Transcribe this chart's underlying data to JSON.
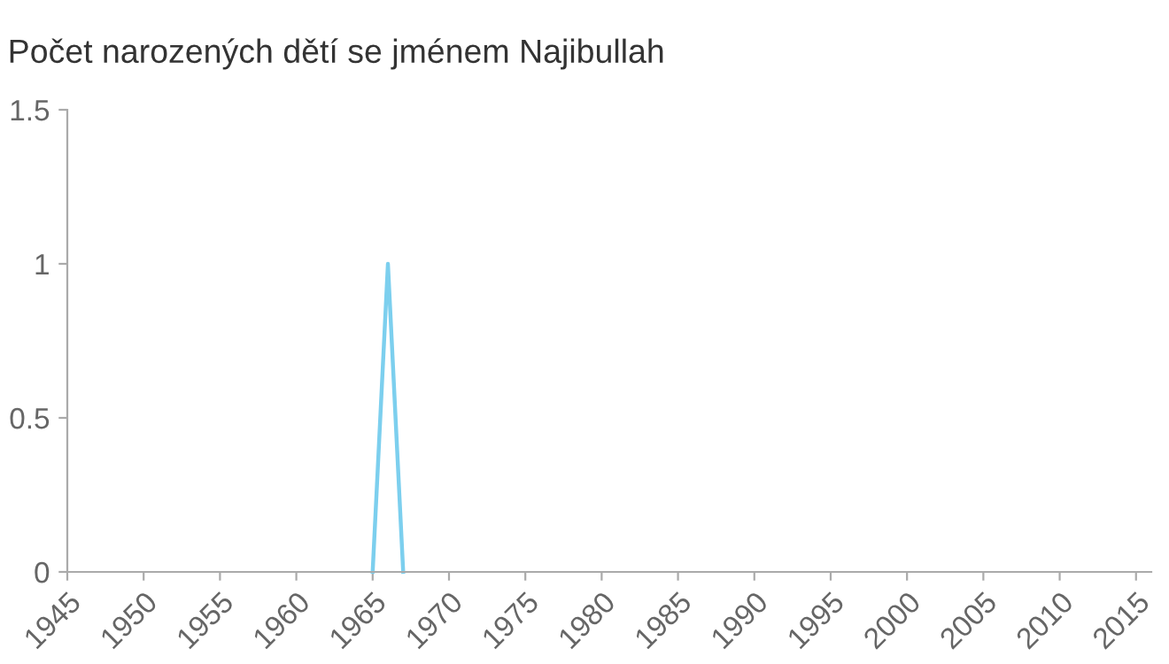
{
  "chart_data": {
    "type": "line",
    "title": "Počet narozených dětí se jménem Najibullah",
    "x": [
      1965,
      1966,
      1967
    ],
    "series": [
      {
        "color": "#7ccfee",
        "values": [
          0,
          1,
          0
        ]
      }
    ],
    "xlim": [
      1945,
      2016
    ],
    "xticks": [
      1945,
      1950,
      1955,
      1960,
      1965,
      1970,
      1975,
      1980,
      1985,
      1990,
      1995,
      2000,
      2005,
      2010,
      2015
    ],
    "ylim": [
      0,
      1.5
    ],
    "yticks": [
      0,
      {
        "value": 0.5,
        "label": "0.5"
      },
      1,
      {
        "value": 1.5,
        "label": "1.5"
      }
    ],
    "grid": false,
    "legend": false,
    "marker": "none",
    "line_style": "solid"
  }
}
